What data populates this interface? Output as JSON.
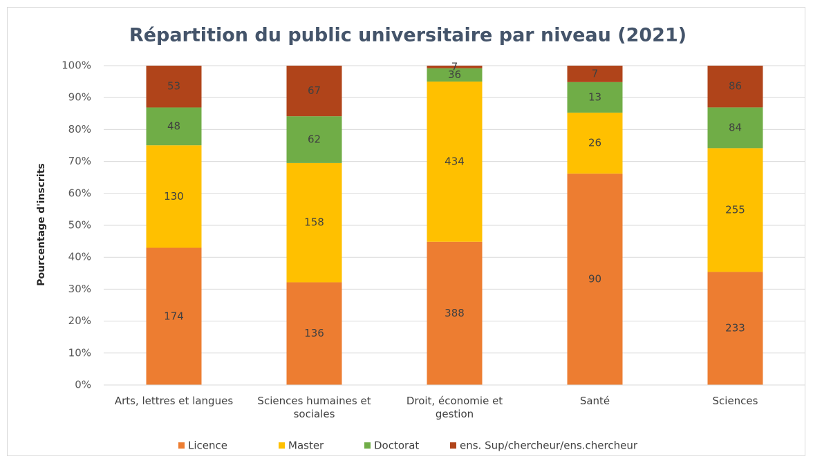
{
  "chart_data": {
    "type": "bar",
    "stacking": "percent",
    "title": "Répartition du public universitaire par niveau (2021)",
    "y_label": "Pourcentage d'inscrits",
    "categories": [
      "Arts, lettres et langues",
      "Sciences humaines et sociales",
      "Droit, économie et gestion",
      "Santé",
      "Sciences"
    ],
    "series": [
      {
        "name": "Licence",
        "color": "#ed7d31",
        "values": [
          174,
          136,
          388,
          90,
          233
        ]
      },
      {
        "name": "Master",
        "color": "#ffc000",
        "values": [
          130,
          158,
          434,
          26,
          255
        ]
      },
      {
        "name": "Doctorat",
        "color": "#70ad47",
        "values": [
          48,
          62,
          36,
          13,
          84
        ]
      },
      {
        "name": "ens. Sup/chercheur/ens.chercheur",
        "color": "#b0441a",
        "values": [
          53,
          67,
          7,
          7,
          86
        ]
      }
    ],
    "ylim": [
      0,
      100
    ],
    "yticks": [
      {
        "value": 0,
        "label": "0%"
      },
      {
        "value": 10,
        "label": "10%"
      },
      {
        "value": 20,
        "label": "20%"
      },
      {
        "value": 30,
        "label": "30%"
      },
      {
        "value": 40,
        "label": "40%"
      },
      {
        "value": 50,
        "label": "50%"
      },
      {
        "value": 60,
        "label": "60%"
      },
      {
        "value": 70,
        "label": "70%"
      },
      {
        "value": 80,
        "label": "80%"
      },
      {
        "value": 90,
        "label": "90%"
      },
      {
        "value": 100,
        "label": "100%"
      }
    ],
    "grid": true,
    "legend": "bottom"
  }
}
